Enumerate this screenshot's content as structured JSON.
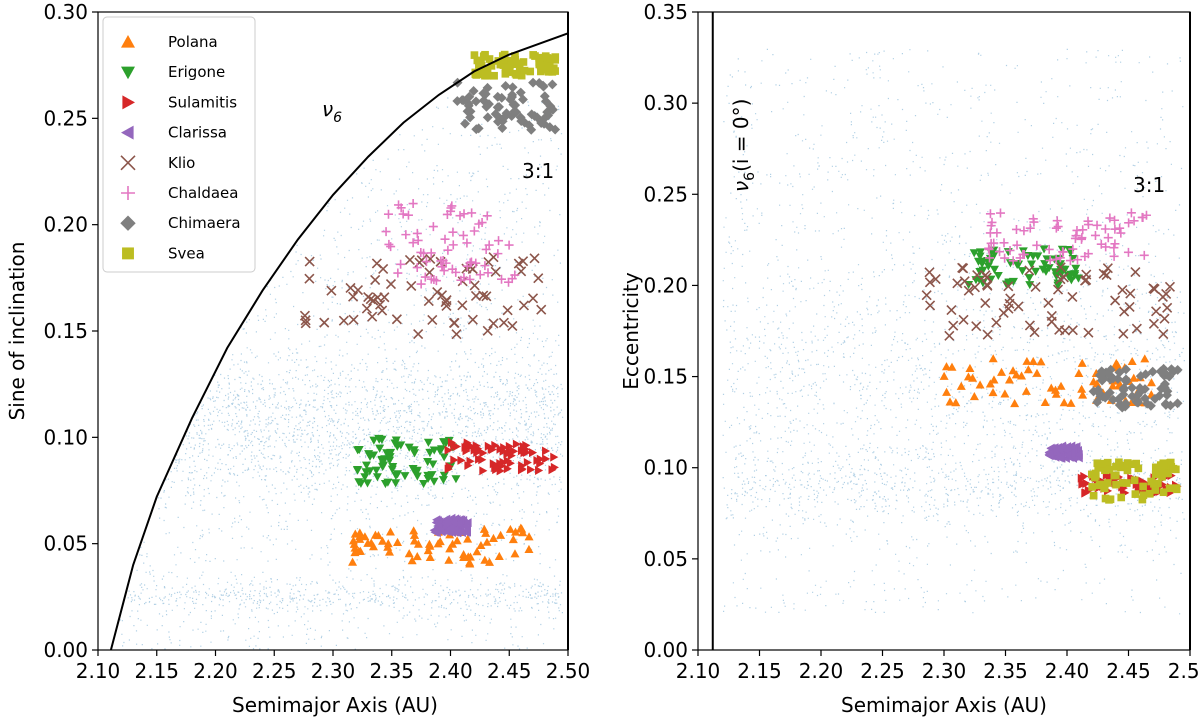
{
  "chart_data": [
    {
      "type": "scatter",
      "xlabel": "Semimajor Axis (AU)",
      "ylabel": "Sine of inclination",
      "xlim": [
        2.1,
        2.5
      ],
      "ylim": [
        0.0,
        0.3
      ],
      "xticks": [
        "2.10",
        "2.15",
        "2.20",
        "2.25",
        "2.30",
        "2.35",
        "2.40",
        "2.45",
        "2.50"
      ],
      "yticks": [
        "0.00",
        "0.05",
        "0.10",
        "0.15",
        "0.20",
        "0.25",
        "0.30"
      ],
      "background_color": "#1f77b4",
      "annotations": {
        "nu6_label": "ν",
        "nu6_sub": "6",
        "resonance_label": "3:1"
      },
      "nu6_curve": {
        "x": [
          2.111,
          2.13,
          2.15,
          2.18,
          2.21,
          2.24,
          2.27,
          2.3,
          2.33,
          2.36,
          2.39,
          2.42,
          2.45,
          2.48,
          2.5
        ],
        "y": [
          0.0,
          0.04,
          0.072,
          0.109,
          0.142,
          0.169,
          0.193,
          0.214,
          0.232,
          0.248,
          0.261,
          0.272,
          0.28,
          0.286,
          0.29
        ]
      },
      "legend": [
        {
          "name": "Polana",
          "marker": "triangle-up",
          "color": "#ff7f0e"
        },
        {
          "name": "Erigone",
          "marker": "triangle-down",
          "color": "#2ca02c"
        },
        {
          "name": "Sulamitis",
          "marker": "triangle-right",
          "color": "#d62728"
        },
        {
          "name": "Clarissa",
          "marker": "triangle-left",
          "color": "#9467bd"
        },
        {
          "name": "Klio",
          "marker": "x",
          "color": "#8c564b"
        },
        {
          "name": "Chaldaea",
          "marker": "plus",
          "color": "#e377c2"
        },
        {
          "name": "Chimaera",
          "marker": "diamond",
          "color": "#7f7f7f"
        },
        {
          "name": "Svea",
          "marker": "square",
          "color": "#bcbd22"
        }
      ],
      "series": [
        {
          "name": "Polana",
          "x_range": [
            2.315,
            2.475
          ],
          "y_range": [
            0.04,
            0.058
          ]
        },
        {
          "name": "Erigone",
          "x_range": [
            2.32,
            2.405
          ],
          "y_range": [
            0.078,
            0.1
          ]
        },
        {
          "name": "Sulamitis",
          "x_range": [
            2.398,
            2.49
          ],
          "y_range": [
            0.084,
            0.098
          ]
        },
        {
          "name": "Clarissa",
          "x_range": [
            2.385,
            2.415
          ],
          "y_range": [
            0.055,
            0.062
          ]
        },
        {
          "name": "Klio",
          "x_range": [
            2.27,
            2.48
          ],
          "y_range": [
            0.148,
            0.185
          ]
        },
        {
          "name": "Chaldaea",
          "x_range": [
            2.345,
            2.455
          ],
          "y_range": [
            0.172,
            0.21
          ]
        },
        {
          "name": "Chimaera",
          "x_range": [
            2.405,
            2.49
          ],
          "y_range": [
            0.244,
            0.267
          ]
        },
        {
          "name": "Svea",
          "x_range": [
            2.42,
            2.49
          ],
          "y_range": [
            0.27,
            0.28
          ]
        }
      ]
    },
    {
      "type": "scatter",
      "xlabel": "Semimajor Axis (AU)",
      "ylabel": "Eccentricity",
      "xlim": [
        2.1,
        2.5
      ],
      "ylim": [
        0.0,
        0.35
      ],
      "xticks": [
        "2.10",
        "2.15",
        "2.20",
        "2.25",
        "2.30",
        "2.35",
        "2.40",
        "2.45",
        "2.50"
      ],
      "yticks": [
        "0.00",
        "0.05",
        "0.10",
        "0.15",
        "0.20",
        "0.25",
        "0.30",
        "0.35"
      ],
      "background_color": "#1f77b4",
      "annotations": {
        "nu6_label": "ν",
        "nu6_sub": "6",
        "nu6_arg": "(i = 0°)",
        "resonance_label": "3:1",
        "nu6_line_x": 2.112,
        "resonance_line_x": 2.5
      },
      "series": [
        {
          "name": "Polana",
          "x_range": [
            2.3,
            2.47
          ],
          "y_range": [
            0.135,
            0.16
          ]
        },
        {
          "name": "Erigone",
          "x_range": [
            2.32,
            2.41
          ],
          "y_range": [
            0.2,
            0.22
          ]
        },
        {
          "name": "Sulamitis",
          "x_range": [
            2.41,
            2.49
          ],
          "y_range": [
            0.086,
            0.096
          ]
        },
        {
          "name": "Clarissa",
          "x_range": [
            2.385,
            2.41
          ],
          "y_range": [
            0.105,
            0.112
          ]
        },
        {
          "name": "Klio",
          "x_range": [
            2.285,
            2.49
          ],
          "y_range": [
            0.17,
            0.21
          ]
        },
        {
          "name": "Chaldaea",
          "x_range": [
            2.335,
            2.465
          ],
          "y_range": [
            0.213,
            0.24
          ]
        },
        {
          "name": "Chimaera",
          "x_range": [
            2.42,
            2.49
          ],
          "y_range": [
            0.133,
            0.155
          ]
        },
        {
          "name": "Svea",
          "x_range": [
            2.42,
            2.49
          ],
          "y_range": [
            0.082,
            0.103
          ]
        }
      ]
    }
  ]
}
